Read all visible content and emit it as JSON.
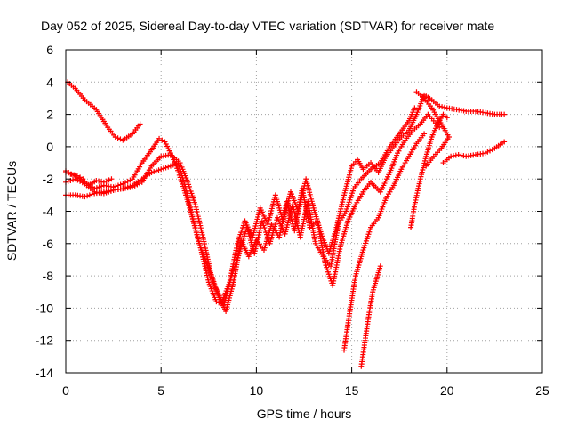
{
  "chart_data": {
    "type": "scatter",
    "title": "Day 052 of 2025, Sidereal Day-to-day VTEC variation (SDTVAR) for receiver mate",
    "xlabel": "GPS time / hours",
    "ylabel": "SDTVAR / TECUs",
    "xlim": [
      0,
      25
    ],
    "ylim": [
      -14,
      6
    ],
    "xticks": [
      0,
      5,
      10,
      15,
      20,
      25
    ],
    "yticks": [
      -14,
      -12,
      -10,
      -8,
      -6,
      -4,
      -2,
      0,
      2,
      4,
      6
    ],
    "grid": true,
    "marker": "+",
    "color": "#ff0000",
    "series": [
      {
        "points": [
          [
            0.1,
            4.0
          ],
          [
            0.5,
            3.6
          ],
          [
            1.0,
            2.9
          ],
          [
            1.6,
            2.3
          ],
          [
            2.2,
            1.2
          ],
          [
            2.6,
            0.6
          ],
          [
            3.0,
            0.4
          ],
          [
            3.5,
            0.8
          ],
          [
            3.9,
            1.4
          ]
        ]
      },
      {
        "points": [
          [
            0.0,
            -1.6
          ],
          [
            0.5,
            -1.8
          ],
          [
            1.0,
            -2.2
          ],
          [
            1.5,
            -2.6
          ],
          [
            2.0,
            -2.4
          ],
          [
            2.5,
            -2.5
          ],
          [
            3.0,
            -2.3
          ],
          [
            3.5,
            -2.0
          ],
          [
            4.0,
            -1.0
          ],
          [
            4.5,
            -0.2
          ],
          [
            4.9,
            0.5
          ],
          [
            5.2,
            0.3
          ],
          [
            5.5,
            -0.4
          ],
          [
            5.8,
            -1.2
          ],
          [
            6.2,
            -2.6
          ],
          [
            6.6,
            -4.2
          ],
          [
            7.0,
            -6.0
          ],
          [
            7.4,
            -7.2
          ],
          [
            7.8,
            -8.6
          ],
          [
            8.2,
            -9.6
          ],
          [
            8.6,
            -8.4
          ],
          [
            9.0,
            -6.0
          ],
          [
            9.4,
            -4.6
          ],
          [
            9.8,
            -5.6
          ],
          [
            10.2,
            -3.8
          ],
          [
            10.6,
            -4.8
          ],
          [
            11.0,
            -3.0
          ],
          [
            11.4,
            -4.6
          ],
          [
            11.8,
            -2.8
          ],
          [
            12.2,
            -4.0
          ],
          [
            12.6,
            -2.0
          ],
          [
            13.0,
            -3.8
          ],
          [
            13.4,
            -5.4
          ],
          [
            13.8,
            -6.6
          ],
          [
            14.2,
            -5.0
          ],
          [
            14.6,
            -3.0
          ],
          [
            15.0,
            -1.2
          ],
          [
            15.3,
            -0.8
          ],
          [
            15.6,
            -1.4
          ],
          [
            16.0,
            -1.0
          ],
          [
            16.4,
            -1.6
          ],
          [
            16.8,
            -0.6
          ],
          [
            17.2,
            0.0
          ],
          [
            17.6,
            0.6
          ],
          [
            18.0,
            1.0
          ],
          [
            18.4,
            2.0
          ],
          [
            18.8,
            3.2
          ],
          [
            19.2,
            2.9
          ],
          [
            19.6,
            2.5
          ],
          [
            20.0,
            2.4
          ],
          [
            20.5,
            2.3
          ],
          [
            21.0,
            2.2
          ],
          [
            21.5,
            2.2
          ],
          [
            22.0,
            2.1
          ],
          [
            22.5,
            2.0
          ],
          [
            23.0,
            2.0
          ]
        ]
      },
      {
        "points": [
          [
            0.0,
            -2.2
          ],
          [
            0.5,
            -2.0
          ],
          [
            1.0,
            -2.3
          ],
          [
            1.5,
            -2.8
          ],
          [
            2.0,
            -2.9
          ],
          [
            2.5,
            -2.7
          ],
          [
            3.0,
            -2.6
          ],
          [
            3.5,
            -2.5
          ],
          [
            4.0,
            -2.2
          ],
          [
            4.5,
            -1.2
          ],
          [
            5.0,
            -0.6
          ],
          [
            5.5,
            -0.5
          ],
          [
            6.0,
            -1.0
          ],
          [
            6.4,
            -2.2
          ],
          [
            6.8,
            -3.6
          ],
          [
            7.2,
            -5.6
          ],
          [
            7.6,
            -7.8
          ],
          [
            8.0,
            -9.2
          ],
          [
            8.4,
            -10.2
          ],
          [
            8.8,
            -8.4
          ],
          [
            9.2,
            -5.8
          ],
          [
            9.6,
            -6.8
          ],
          [
            10.0,
            -5.8
          ],
          [
            10.4,
            -6.4
          ],
          [
            10.8,
            -4.8
          ],
          [
            11.2,
            -5.6
          ],
          [
            11.6,
            -3.4
          ],
          [
            12.0,
            -5.2
          ],
          [
            12.4,
            -2.6
          ],
          [
            12.8,
            -5.0
          ],
          [
            13.2,
            -4.6
          ],
          [
            13.6,
            -7.2
          ],
          [
            14.0,
            -8.6
          ],
          [
            14.4,
            -6.2
          ],
          [
            14.8,
            -4.6
          ],
          [
            15.2,
            -3.6
          ],
          [
            15.6,
            -2.8
          ],
          [
            16.0,
            -2.2
          ],
          [
            16.5,
            -2.8
          ],
          [
            17.0,
            -1.6
          ],
          [
            17.4,
            -0.4
          ],
          [
            17.8,
            0.4
          ],
          [
            18.2,
            1.0
          ],
          [
            18.6,
            1.4
          ],
          [
            19.0,
            2.0
          ],
          [
            19.3,
            1.6
          ],
          [
            19.6,
            1.2
          ]
        ]
      },
      {
        "points": [
          [
            0.0,
            -3.0
          ],
          [
            0.5,
            -3.0
          ],
          [
            1.0,
            -3.1
          ],
          [
            1.5,
            -2.9
          ],
          [
            2.0,
            -2.8
          ],
          [
            2.5,
            -2.7
          ],
          [
            3.0,
            -2.6
          ],
          [
            3.5,
            -2.4
          ],
          [
            4.0,
            -2.0
          ],
          [
            4.5,
            -1.6
          ],
          [
            5.0,
            -1.4
          ],
          [
            5.5,
            -1.2
          ],
          [
            5.9,
            -1.0
          ],
          [
            6.3,
            -2.6
          ],
          [
            6.7,
            -4.6
          ],
          [
            7.1,
            -6.4
          ],
          [
            7.5,
            -8.4
          ],
          [
            7.9,
            -9.6
          ],
          [
            8.3,
            -9.8
          ],
          [
            8.7,
            -8.0
          ],
          [
            9.1,
            -6.6
          ],
          [
            9.5,
            -5.0
          ],
          [
            9.9,
            -6.6
          ],
          [
            10.3,
            -4.6
          ],
          [
            10.7,
            -6.0
          ],
          [
            11.1,
            -4.4
          ],
          [
            11.5,
            -5.4
          ],
          [
            11.9,
            -3.6
          ],
          [
            12.3,
            -5.6
          ],
          [
            12.7,
            -3.4
          ],
          [
            13.1,
            -6.0
          ],
          [
            13.5,
            -6.8
          ],
          [
            13.9,
            -7.4
          ],
          [
            14.3,
            -4.8
          ],
          [
            14.7,
            -4.0
          ],
          [
            15.1,
            -2.6
          ],
          [
            15.5,
            -2.0
          ],
          [
            16.0,
            -1.4
          ],
          [
            16.5,
            -1.0
          ],
          [
            17.0,
            0.0
          ],
          [
            17.5,
            0.8
          ],
          [
            18.0,
            1.6
          ],
          [
            18.3,
            2.4
          ]
        ]
      },
      {
        "points": [
          [
            14.6,
            -12.6
          ],
          [
            14.9,
            -10.2
          ],
          [
            15.2,
            -8.0
          ],
          [
            15.6,
            -6.4
          ],
          [
            16.0,
            -5.0
          ],
          [
            16.4,
            -4.4
          ],
          [
            16.8,
            -3.2
          ],
          [
            17.2,
            -2.4
          ],
          [
            17.6,
            -1.4
          ],
          [
            18.0,
            -0.6
          ],
          [
            18.4,
            0.2
          ],
          [
            18.8,
            0.8
          ]
        ]
      },
      {
        "points": [
          [
            15.5,
            -13.6
          ],
          [
            15.7,
            -12.0
          ],
          [
            15.9,
            -10.4
          ],
          [
            16.1,
            -9.0
          ],
          [
            16.3,
            -8.2
          ],
          [
            16.5,
            -7.4
          ]
        ]
      },
      {
        "points": [
          [
            18.1,
            -5.0
          ],
          [
            18.3,
            -3.6
          ],
          [
            18.6,
            -2.0
          ],
          [
            18.9,
            -0.6
          ],
          [
            19.2,
            0.6
          ],
          [
            19.5,
            1.4
          ],
          [
            19.8,
            2.0
          ],
          [
            20.0,
            1.8
          ]
        ]
      },
      {
        "points": [
          [
            18.4,
            3.4
          ],
          [
            18.8,
            3.0
          ],
          [
            19.2,
            2.4
          ],
          [
            19.6,
            1.6
          ],
          [
            19.9,
            1.0
          ],
          [
            20.1,
            0.6
          ],
          [
            19.7,
            -0.1
          ],
          [
            19.3,
            -0.6
          ],
          [
            18.9,
            -1.2
          ]
        ]
      },
      {
        "points": [
          [
            19.8,
            -1.0
          ],
          [
            20.2,
            -0.6
          ],
          [
            20.6,
            -0.5
          ],
          [
            21.0,
            -0.6
          ],
          [
            21.5,
            -0.5
          ],
          [
            22.0,
            -0.4
          ],
          [
            22.5,
            -0.1
          ],
          [
            23.0,
            0.3
          ]
        ]
      },
      {
        "points": [
          [
            0.0,
            -1.5
          ],
          [
            0.3,
            -1.7
          ],
          [
            0.6,
            -1.8
          ],
          [
            0.9,
            -2.0
          ],
          [
            1.2,
            -2.4
          ],
          [
            1.6,
            -2.1
          ],
          [
            2.0,
            -2.2
          ],
          [
            2.4,
            -2.0
          ]
        ]
      }
    ]
  }
}
